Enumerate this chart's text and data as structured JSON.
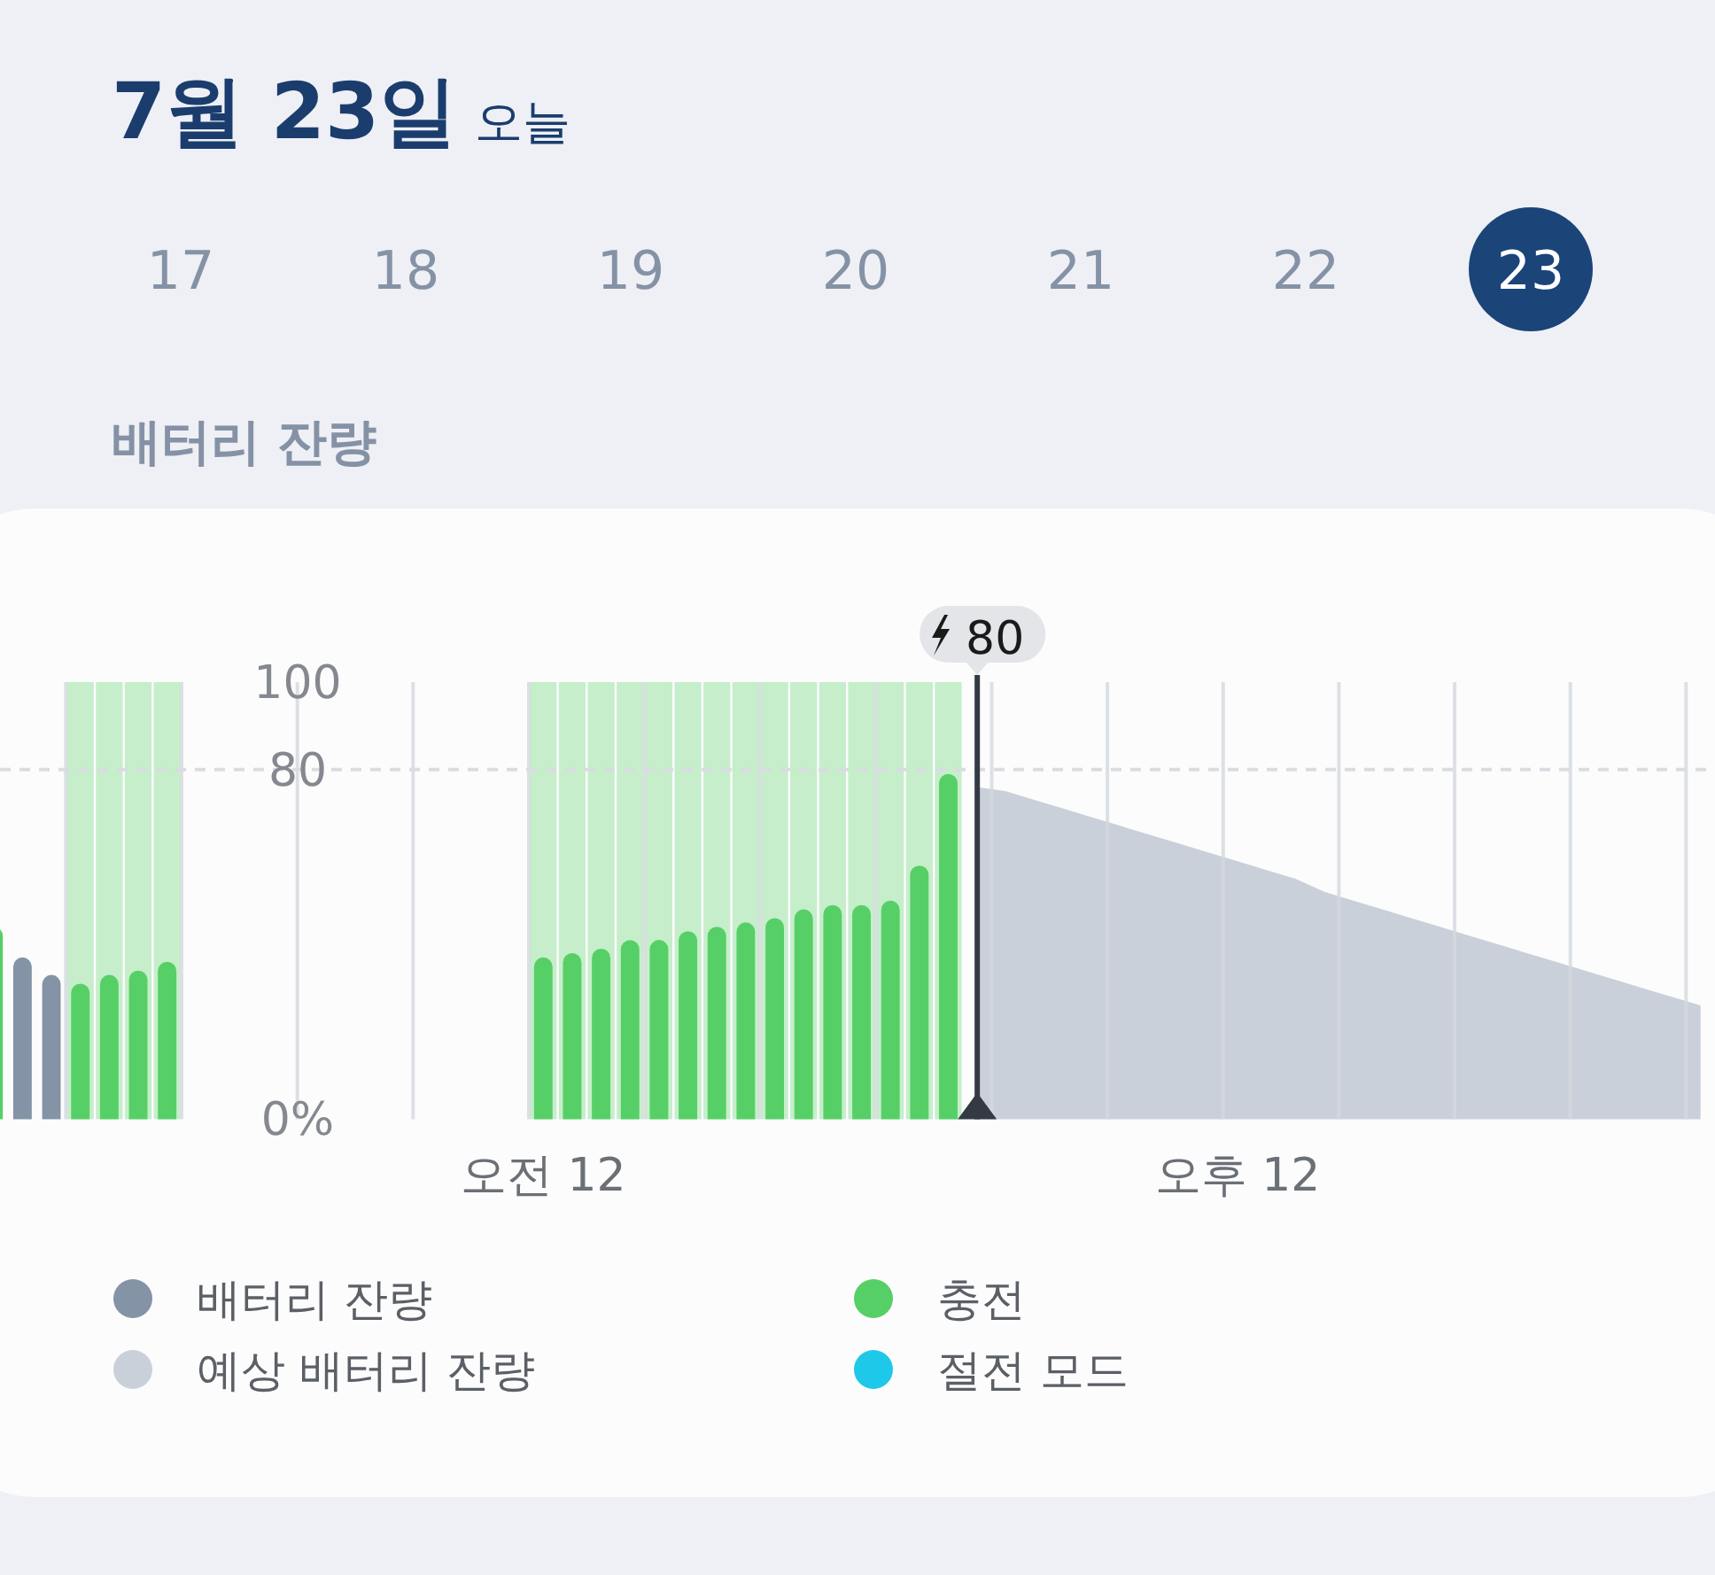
{
  "chart_data": {
    "type": "bar",
    "title": "7월 23일",
    "subtitle": "오늘",
    "annotations": [
      "17",
      "18",
      "19",
      "20",
      "21",
      "22",
      "23",
      "배터리 잔량",
      {
        "text": "80"
      }
    ],
    "categories": [
      null,
      null,
      null,
      null,
      null,
      null,
      null,
      null,
      null,
      null,
      null,
      null,
      null,
      null,
      null,
      null,
      null,
      null,
      null,
      "오전 12",
      null,
      null,
      null,
      null,
      null,
      null,
      null,
      null,
      null,
      null,
      null,
      null,
      null,
      null,
      null,
      null,
      null,
      null,
      null,
      null,
      null,
      null,
      null,
      "오후 12",
      null,
      null,
      null,
      null,
      null,
      null,
      null,
      null,
      null,
      null,
      null,
      null,
      null,
      null,
      null,
      null
    ],
    "ylim": [
      0,
      100
    ],
    "yticks": [
      {
        "value": 0,
        "label": "0%"
      },
      80,
      100
    ],
    "grid": "x",
    "legend": "bottom",
    "ref_lines": [
      {
        "axis": "y",
        "value": 80,
        "color": "#d9dce1",
        "line_style": "dashed"
      }
    ],
    "series": [
      {
        "color": "#c6eecb",
        "values": [
          null,
          null,
          null,
          100,
          100,
          100,
          100,
          null,
          null,
          null,
          null,
          null,
          null,
          null,
          null,
          null,
          null,
          null,
          null,
          100,
          100,
          100,
          100,
          100,
          100,
          100,
          100,
          100,
          100,
          100,
          100,
          100,
          100,
          100,
          null,
          null,
          null,
          null,
          null,
          null,
          null,
          null,
          null,
          null,
          null,
          null,
          null,
          null,
          null,
          null,
          null,
          null,
          null,
          null,
          null,
          null,
          null,
          null,
          null,
          null
        ]
      },
      {
        "name": "배터리 잔량",
        "color": "#8593a6",
        "values": [
          null,
          37,
          33,
          null,
          null,
          null,
          null,
          null,
          null,
          null,
          null,
          null,
          null,
          null,
          null,
          null,
          null,
          null,
          null,
          null,
          null,
          null,
          null,
          null,
          null,
          null,
          null,
          null,
          null,
          null,
          null,
          null,
          null,
          null,
          null,
          null,
          null,
          null,
          null,
          null,
          null,
          null,
          null,
          null,
          null,
          null,
          null,
          null,
          null,
          null,
          null,
          null,
          null,
          null,
          null,
          null,
          null,
          null,
          null,
          null
        ]
      },
      {
        "name": "예상 배터리 잔량",
        "type": "area",
        "color": "#c9d0da",
        "values": [
          null,
          null,
          null,
          null,
          null,
          null,
          null,
          null,
          null,
          null,
          null,
          null,
          null,
          null,
          null,
          null,
          null,
          null,
          null,
          null,
          null,
          null,
          null,
          null,
          null,
          null,
          null,
          null,
          null,
          null,
          null,
          null,
          null,
          null,
          76,
          75,
          73,
          71,
          69,
          67,
          65,
          63,
          61,
          59,
          57,
          55,
          52,
          50,
          48,
          46,
          44,
          42,
          40,
          38,
          36,
          34,
          32,
          30,
          28,
          26
        ]
      },
      {
        "name": "충전",
        "color": "#57cf67",
        "values": [
          44,
          null,
          null,
          31,
          33,
          34,
          36,
          null,
          null,
          null,
          null,
          null,
          null,
          null,
          null,
          null,
          null,
          null,
          null,
          37,
          38,
          39,
          41,
          41,
          43,
          44,
          45,
          46,
          48,
          49,
          49,
          50,
          58,
          79,
          null,
          null,
          null,
          null,
          null,
          null,
          null,
          null,
          null,
          null,
          null,
          null,
          null,
          null,
          null,
          null,
          null,
          null,
          null,
          null,
          null,
          null,
          null,
          null,
          null,
          null
        ]
      },
      {
        "name": "절전 모드",
        "color": "#1ec8e8",
        "values": [
          null,
          null,
          null,
          null,
          null,
          null,
          null,
          null,
          null,
          null,
          null,
          null,
          null,
          null,
          null,
          null,
          null,
          null,
          null,
          null,
          null,
          null,
          null,
          null,
          null,
          null,
          null,
          null,
          null,
          null,
          null,
          null,
          null,
          null,
          null,
          null,
          null,
          null,
          null,
          null,
          null,
          null,
          null,
          null,
          null,
          null,
          null,
          null,
          null,
          null,
          null,
          null,
          null,
          null,
          null,
          null,
          null,
          null,
          null,
          null
        ]
      }
    ]
  }
}
